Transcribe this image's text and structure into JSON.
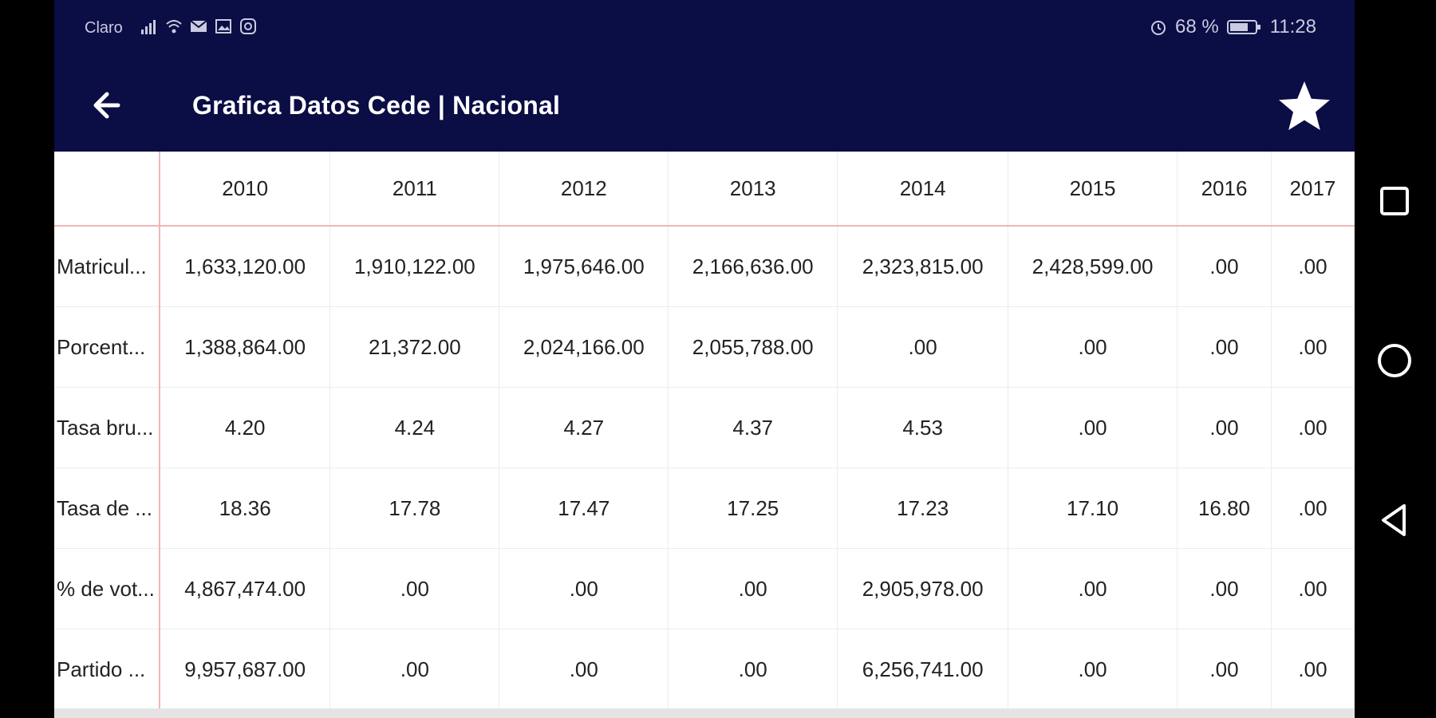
{
  "status_bar": {
    "carrier": "Claro",
    "battery": "68 %",
    "time": "11:28",
    "icons_left": [
      "signal-icon",
      "wifi-icon",
      "mail-icon",
      "gallery-icon",
      "instagram-icon"
    ],
    "icons_right": [
      "alarm-icon",
      "battery-icon"
    ]
  },
  "app_bar": {
    "title": "Grafica Datos Cede | Nacional",
    "back_icon": "arrow-left-icon",
    "favorite_icon": "star-icon"
  },
  "colors": {
    "app_bar_bg": "#0b0d45",
    "grid_line": "#ececec",
    "header_divider": "#f1b5b5"
  },
  "table": {
    "columns": [
      "2010",
      "2011",
      "2012",
      "2013",
      "2014",
      "2015",
      "2016",
      "2017"
    ],
    "rows": [
      {
        "label": "Matricul...",
        "values": [
          "1,633,120.00",
          "1,910,122.00",
          "1,975,646.00",
          "2,166,636.00",
          "2,323,815.00",
          "2,428,599.00",
          ".00",
          ".00"
        ]
      },
      {
        "label": "Porcent...",
        "values": [
          "1,388,864.00",
          "21,372.00",
          "2,024,166.00",
          "2,055,788.00",
          ".00",
          ".00",
          ".00",
          ".00"
        ]
      },
      {
        "label": "Tasa bru...",
        "values": [
          "4.20",
          "4.24",
          "4.27",
          "4.37",
          "4.53",
          ".00",
          ".00",
          ".00"
        ]
      },
      {
        "label": "Tasa de ...",
        "values": [
          "18.36",
          "17.78",
          "17.47",
          "17.25",
          "17.23",
          "17.10",
          "16.80",
          ".00"
        ]
      },
      {
        "label": "% de vot...",
        "values": [
          "4,867,474.00",
          ".00",
          ".00",
          ".00",
          "2,905,978.00",
          ".00",
          ".00",
          ".00"
        ]
      },
      {
        "label": "Partido ...",
        "values": [
          "9,957,687.00",
          ".00",
          ".00",
          ".00",
          "6,256,741.00",
          ".00",
          ".00",
          ".00"
        ]
      }
    ]
  },
  "nav_bar": {
    "buttons": [
      "recents-square-icon",
      "home-circle-icon",
      "back-triangle-icon"
    ]
  }
}
